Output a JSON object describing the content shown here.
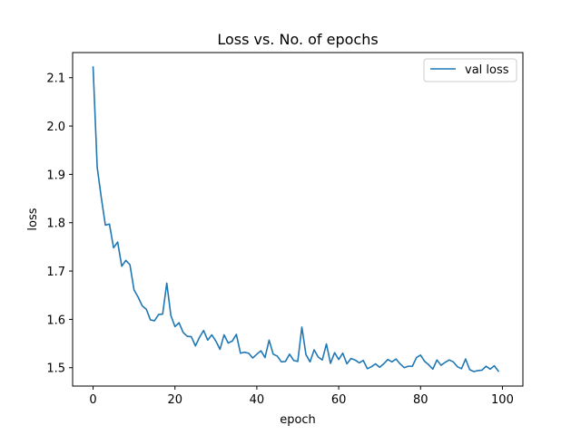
{
  "chart_data": {
    "type": "line",
    "title": "Loss vs. No. of epochs",
    "xlabel": "epoch",
    "ylabel": "loss",
    "xlim": [
      -5,
      105
    ],
    "ylim": [
      1.462,
      2.152
    ],
    "x_ticks": [
      0,
      20,
      40,
      60,
      80,
      100
    ],
    "y_ticks": [
      1.5,
      1.6,
      1.7,
      1.8,
      1.9,
      2.0,
      2.1
    ],
    "y_tick_labels": [
      "1.5",
      "1.6",
      "1.7",
      "1.8",
      "1.9",
      "2.0",
      "2.1"
    ],
    "grid": false,
    "legend_position": "top-right",
    "series": [
      {
        "name": "val loss",
        "color": "#1f77b4",
        "x": [
          0,
          1,
          2,
          3,
          4,
          5,
          6,
          7,
          8,
          9,
          10,
          11,
          12,
          13,
          14,
          15,
          16,
          17,
          18,
          19,
          20,
          21,
          22,
          23,
          24,
          25,
          26,
          27,
          28,
          29,
          30,
          31,
          32,
          33,
          34,
          35,
          36,
          37,
          38,
          39,
          40,
          41,
          42,
          43,
          44,
          45,
          46,
          47,
          48,
          49,
          50,
          51,
          52,
          53,
          54,
          55,
          56,
          57,
          58,
          59,
          60,
          61,
          62,
          63,
          64,
          65,
          66,
          67,
          68,
          69,
          70,
          71,
          72,
          73,
          74,
          75,
          76,
          77,
          78,
          79,
          80,
          81,
          82,
          83,
          84,
          85,
          86,
          87,
          88,
          89,
          90,
          91,
          92,
          93,
          94,
          95,
          96,
          97,
          98,
          99
        ],
        "values": [
          2.122,
          1.915,
          1.852,
          1.795,
          1.797,
          1.748,
          1.76,
          1.71,
          1.722,
          1.713,
          1.661,
          1.646,
          1.628,
          1.621,
          1.599,
          1.597,
          1.61,
          1.611,
          1.675,
          1.608,
          1.585,
          1.593,
          1.573,
          1.565,
          1.564,
          1.545,
          1.563,
          1.577,
          1.557,
          1.568,
          1.555,
          1.538,
          1.568,
          1.551,
          1.555,
          1.569,
          1.53,
          1.532,
          1.53,
          1.52,
          1.528,
          1.535,
          1.521,
          1.557,
          1.528,
          1.524,
          1.512,
          1.513,
          1.528,
          1.515,
          1.513,
          1.584,
          1.527,
          1.512,
          1.537,
          1.522,
          1.516,
          1.549,
          1.509,
          1.531,
          1.517,
          1.53,
          1.508,
          1.519,
          1.516,
          1.51,
          1.515,
          1.498,
          1.502,
          1.508,
          1.501,
          1.508,
          1.517,
          1.512,
          1.518,
          1.508,
          1.5,
          1.503,
          1.503,
          1.521,
          1.526,
          1.513,
          1.506,
          1.497,
          1.516,
          1.505,
          1.511,
          1.516,
          1.512,
          1.502,
          1.498,
          1.518,
          1.496,
          1.492,
          1.494,
          1.495,
          1.503,
          1.497,
          1.504,
          1.493
        ]
      }
    ]
  }
}
